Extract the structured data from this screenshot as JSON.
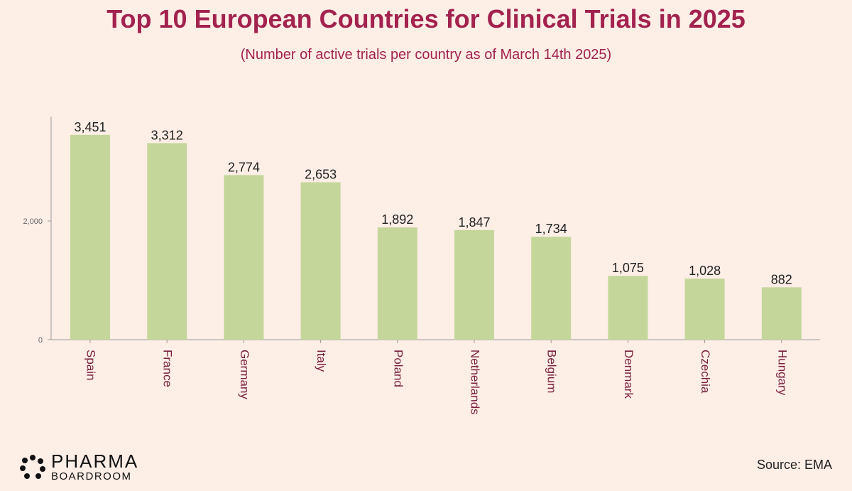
{
  "chart_data": {
    "type": "bar",
    "title": "Top 10 European Countries for Clinical Trials in 2025",
    "subtitle": "(Number of active trials per country as of March 14th 2025)",
    "categories": [
      "Spain",
      "France",
      "Germany",
      "Italy",
      "Poland",
      "Netherlands",
      "Belgium",
      "Denmark",
      "Czechia",
      "Hungary"
    ],
    "values": [
      3451,
      3312,
      2774,
      2653,
      1892,
      1847,
      1734,
      1075,
      1028,
      882
    ],
    "value_labels": [
      "3,451",
      "3,312",
      "2,774",
      "2,653",
      "1,892",
      "1,847",
      "1,734",
      "1,075",
      "1,028",
      "882"
    ],
    "yticks": [
      0,
      2000
    ],
    "ytick_labels": [
      "0",
      "2,000"
    ],
    "ylim": [
      0,
      3700
    ],
    "xlabel": "",
    "ylabel": "",
    "bar_color": "#c5d69a"
  },
  "logo": {
    "line1": "PHARMA",
    "line2": "BOARDROOM"
  },
  "source": "Source: EMA",
  "colors": {
    "accent": "#a3224e",
    "background": "#fdeee6",
    "category_label": "#7a1f3d"
  }
}
